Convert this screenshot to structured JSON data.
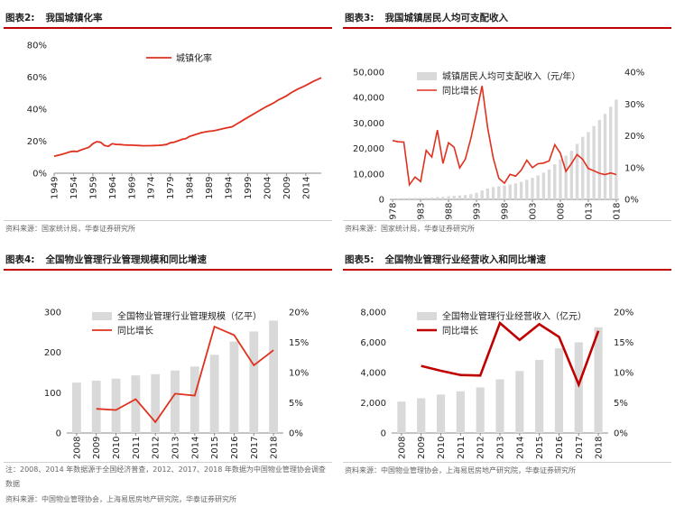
{
  "panels": [
    {
      "fig_no": "图表2:",
      "title": "我国城镇化率",
      "source": "资料来源：国家统计局，华泰证券研究所",
      "chart_data": {
        "type": "line",
        "x": [
          1949,
          1950,
          1951,
          1952,
          1953,
          1954,
          1955,
          1956,
          1957,
          1958,
          1959,
          1960,
          1961,
          1962,
          1963,
          1964,
          1965,
          1966,
          1967,
          1968,
          1969,
          1970,
          1971,
          1972,
          1973,
          1974,
          1975,
          1976,
          1977,
          1978,
          1979,
          1980,
          1981,
          1982,
          1983,
          1984,
          1985,
          1986,
          1987,
          1988,
          1989,
          1990,
          1991,
          1992,
          1993,
          1994,
          1995,
          1996,
          1997,
          1998,
          1999,
          2000,
          2001,
          2002,
          2003,
          2004,
          2005,
          2006,
          2007,
          2008,
          2009,
          2010,
          2011,
          2012,
          2013,
          2014,
          2015,
          2016,
          2017,
          2018
        ],
        "xticks": [
          "1949",
          "1954",
          "1959",
          "1964",
          "1969",
          "1974",
          "1979",
          "1984",
          "1989",
          "1994",
          "1999",
          "2004",
          "2009",
          "2014"
        ],
        "xlim": [
          1949,
          2018
        ],
        "yticks": [
          "0%",
          "20%",
          "40%",
          "60%",
          "80%"
        ],
        "ylim": [
          0,
          80
        ],
        "series": [
          {
            "name": "城镇化率",
            "color": "#e0301e",
            "values": [
              10.6,
              11.2,
              11.8,
              12.5,
              13.3,
              13.7,
              13.5,
              14.6,
              15.4,
              16.2,
              18.4,
              19.7,
              19.3,
              17.3,
              16.8,
              18.4,
              18.0,
              17.9,
              17.7,
              17.6,
              17.5,
              17.4,
              17.3,
              17.1,
              17.2,
              17.2,
              17.3,
              17.4,
              17.6,
              17.9,
              19.0,
              19.4,
              20.2,
              21.1,
              21.6,
              23.0,
              23.7,
              24.5,
              25.3,
              25.8,
              26.2,
              26.4,
              26.9,
              27.5,
              28.0,
              28.5,
              29.0,
              30.5,
              31.9,
              33.4,
              34.8,
              36.2,
              37.7,
              39.1,
              40.5,
              41.8,
              43.0,
              44.3,
              45.9,
              47.0,
              48.3,
              49.9,
              51.3,
              52.6,
              53.7,
              54.8,
              56.1,
              57.4,
              58.5,
              59.6
            ]
          }
        ],
        "legend": "top-center"
      }
    },
    {
      "fig_no": "图表3:",
      "title": "我国城镇居民人均可支配收入",
      "source": "资料来源：国家统计局，华泰证券研究所",
      "chart_data": {
        "type": "bar+line",
        "x": [
          1978,
          1979,
          1980,
          1981,
          1982,
          1983,
          1984,
          1985,
          1986,
          1987,
          1988,
          1989,
          1990,
          1991,
          1992,
          1993,
          1994,
          1995,
          1996,
          1997,
          1998,
          1999,
          2000,
          2001,
          2002,
          2003,
          2004,
          2005,
          2006,
          2007,
          2008,
          2009,
          2010,
          2011,
          2012,
          2013,
          2014,
          2015,
          2016,
          2017,
          2018
        ],
        "xticks": [
          "1978",
          "1983",
          "1988",
          "1993",
          "1998",
          "2003",
          "2008",
          "2013",
          "2018"
        ],
        "yticks_left": [
          "0",
          "10,000",
          "20,000",
          "30,000",
          "40,000",
          "50,000"
        ],
        "ylim_left": [
          0,
          50000
        ],
        "yticks_right": [
          "0%",
          "10%",
          "20%",
          "30%",
          "40%"
        ],
        "ylim_right": [
          0,
          40
        ],
        "bars": {
          "name": "城镇居民人均可支配收入（元/年）",
          "color": "#d9d9d9",
          "values": [
            343,
            405,
            478,
            500,
            535,
            565,
            652,
            739,
            900,
            1002,
            1180,
            1374,
            1510,
            1701,
            2027,
            2577,
            3496,
            4283,
            4839,
            5160,
            5425,
            5854,
            6280,
            6860,
            7703,
            8472,
            9422,
            10493,
            11759,
            13786,
            15781,
            17175,
            19109,
            21810,
            24565,
            26467,
            28844,
            31195,
            33616,
            36396,
            39251
          ]
        },
        "line": {
          "name": "同比增长",
          "color": "#e0301e",
          "values": [
            18.5,
            18.1,
            18.0,
            4.6,
            7.0,
            5.6,
            15.4,
            13.3,
            21.8,
            11.3,
            17.8,
            16.4,
            9.9,
            12.6,
            19.2,
            27.2,
            35.7,
            22.5,
            13.0,
            6.6,
            5.1,
            7.9,
            7.3,
            9.2,
            12.3,
            10.0,
            11.2,
            11.4,
            12.1,
            17.2,
            14.5,
            8.8,
            11.3,
            14.1,
            12.6,
            9.7,
            9.0,
            8.2,
            7.8,
            8.3,
            7.8
          ]
        },
        "legend": "top-left"
      }
    },
    {
      "fig_no": "图表4:",
      "title": "全国物业管理行业管理规模和同比增速",
      "note": "注：2008、2014 年数据源于全国经济普查，2012、2017、2018 年数据为中国物业管理协会调查数据",
      "source": "资料来源：中国物业管理协会，上海易居房地产研究院，华泰证券研究所",
      "chart_data": {
        "type": "bar+line",
        "categories": [
          "2008",
          "2009",
          "2010",
          "2011",
          "2012",
          "2013",
          "2014",
          "2015",
          "2016",
          "2017",
          "2018"
        ],
        "yticks_left": [
          "0",
          "100",
          "200",
          "300"
        ],
        "ylim_left": [
          0,
          300
        ],
        "yticks_right": [
          "0%",
          "5%",
          "10%",
          "15%",
          "20%"
        ],
        "ylim_right": [
          0,
          20
        ],
        "bars": {
          "name": "全国物业管理行业管理规模（亿平）",
          "color": "#d9d9d9",
          "values": [
            125,
            130,
            135,
            143,
            146,
            155,
            165,
            194,
            227,
            252,
            279
          ]
        },
        "line": {
          "name": "同比增长",
          "color": "#e0301e",
          "start_index": 1,
          "values": [
            null,
            4.0,
            3.8,
            5.6,
            1.8,
            6.5,
            6.2,
            17.6,
            16.2,
            11.2,
            13.7
          ]
        },
        "legend": "top-center"
      }
    },
    {
      "fig_no": "图表5:",
      "title": "全国物业管理行业经营收入和同比增速",
      "source": "资料来源：中国物业管理协会，上海易居房地产研究院，华泰证券研究所",
      "chart_data": {
        "type": "bar+line",
        "categories": [
          "2008",
          "2009",
          "2010",
          "2011",
          "2012",
          "2013",
          "2014",
          "2015",
          "2016",
          "2017",
          "2018"
        ],
        "yticks_left": [
          "0",
          "2,000",
          "4,000",
          "6,000",
          "8,000"
        ],
        "ylim_left": [
          0,
          8000
        ],
        "yticks_right": [
          "0%",
          "5%",
          "10%",
          "15%",
          "20%"
        ],
        "ylim_right": [
          0,
          20
        ],
        "bars": {
          "name": "全国物业管理行业经营收入（亿元）",
          "color": "#d9d9d9",
          "values": [
            2080,
            2300,
            2540,
            2760,
            3020,
            3550,
            4100,
            4840,
            5600,
            6000,
            7000
          ]
        },
        "line": {
          "name": "同比增长",
          "color": "#c00000",
          "values": [
            null,
            11.1,
            10.3,
            9.6,
            9.5,
            18.2,
            15.4,
            18.0,
            15.9,
            8.0,
            16.9
          ]
        },
        "legend": "top-center"
      }
    }
  ]
}
